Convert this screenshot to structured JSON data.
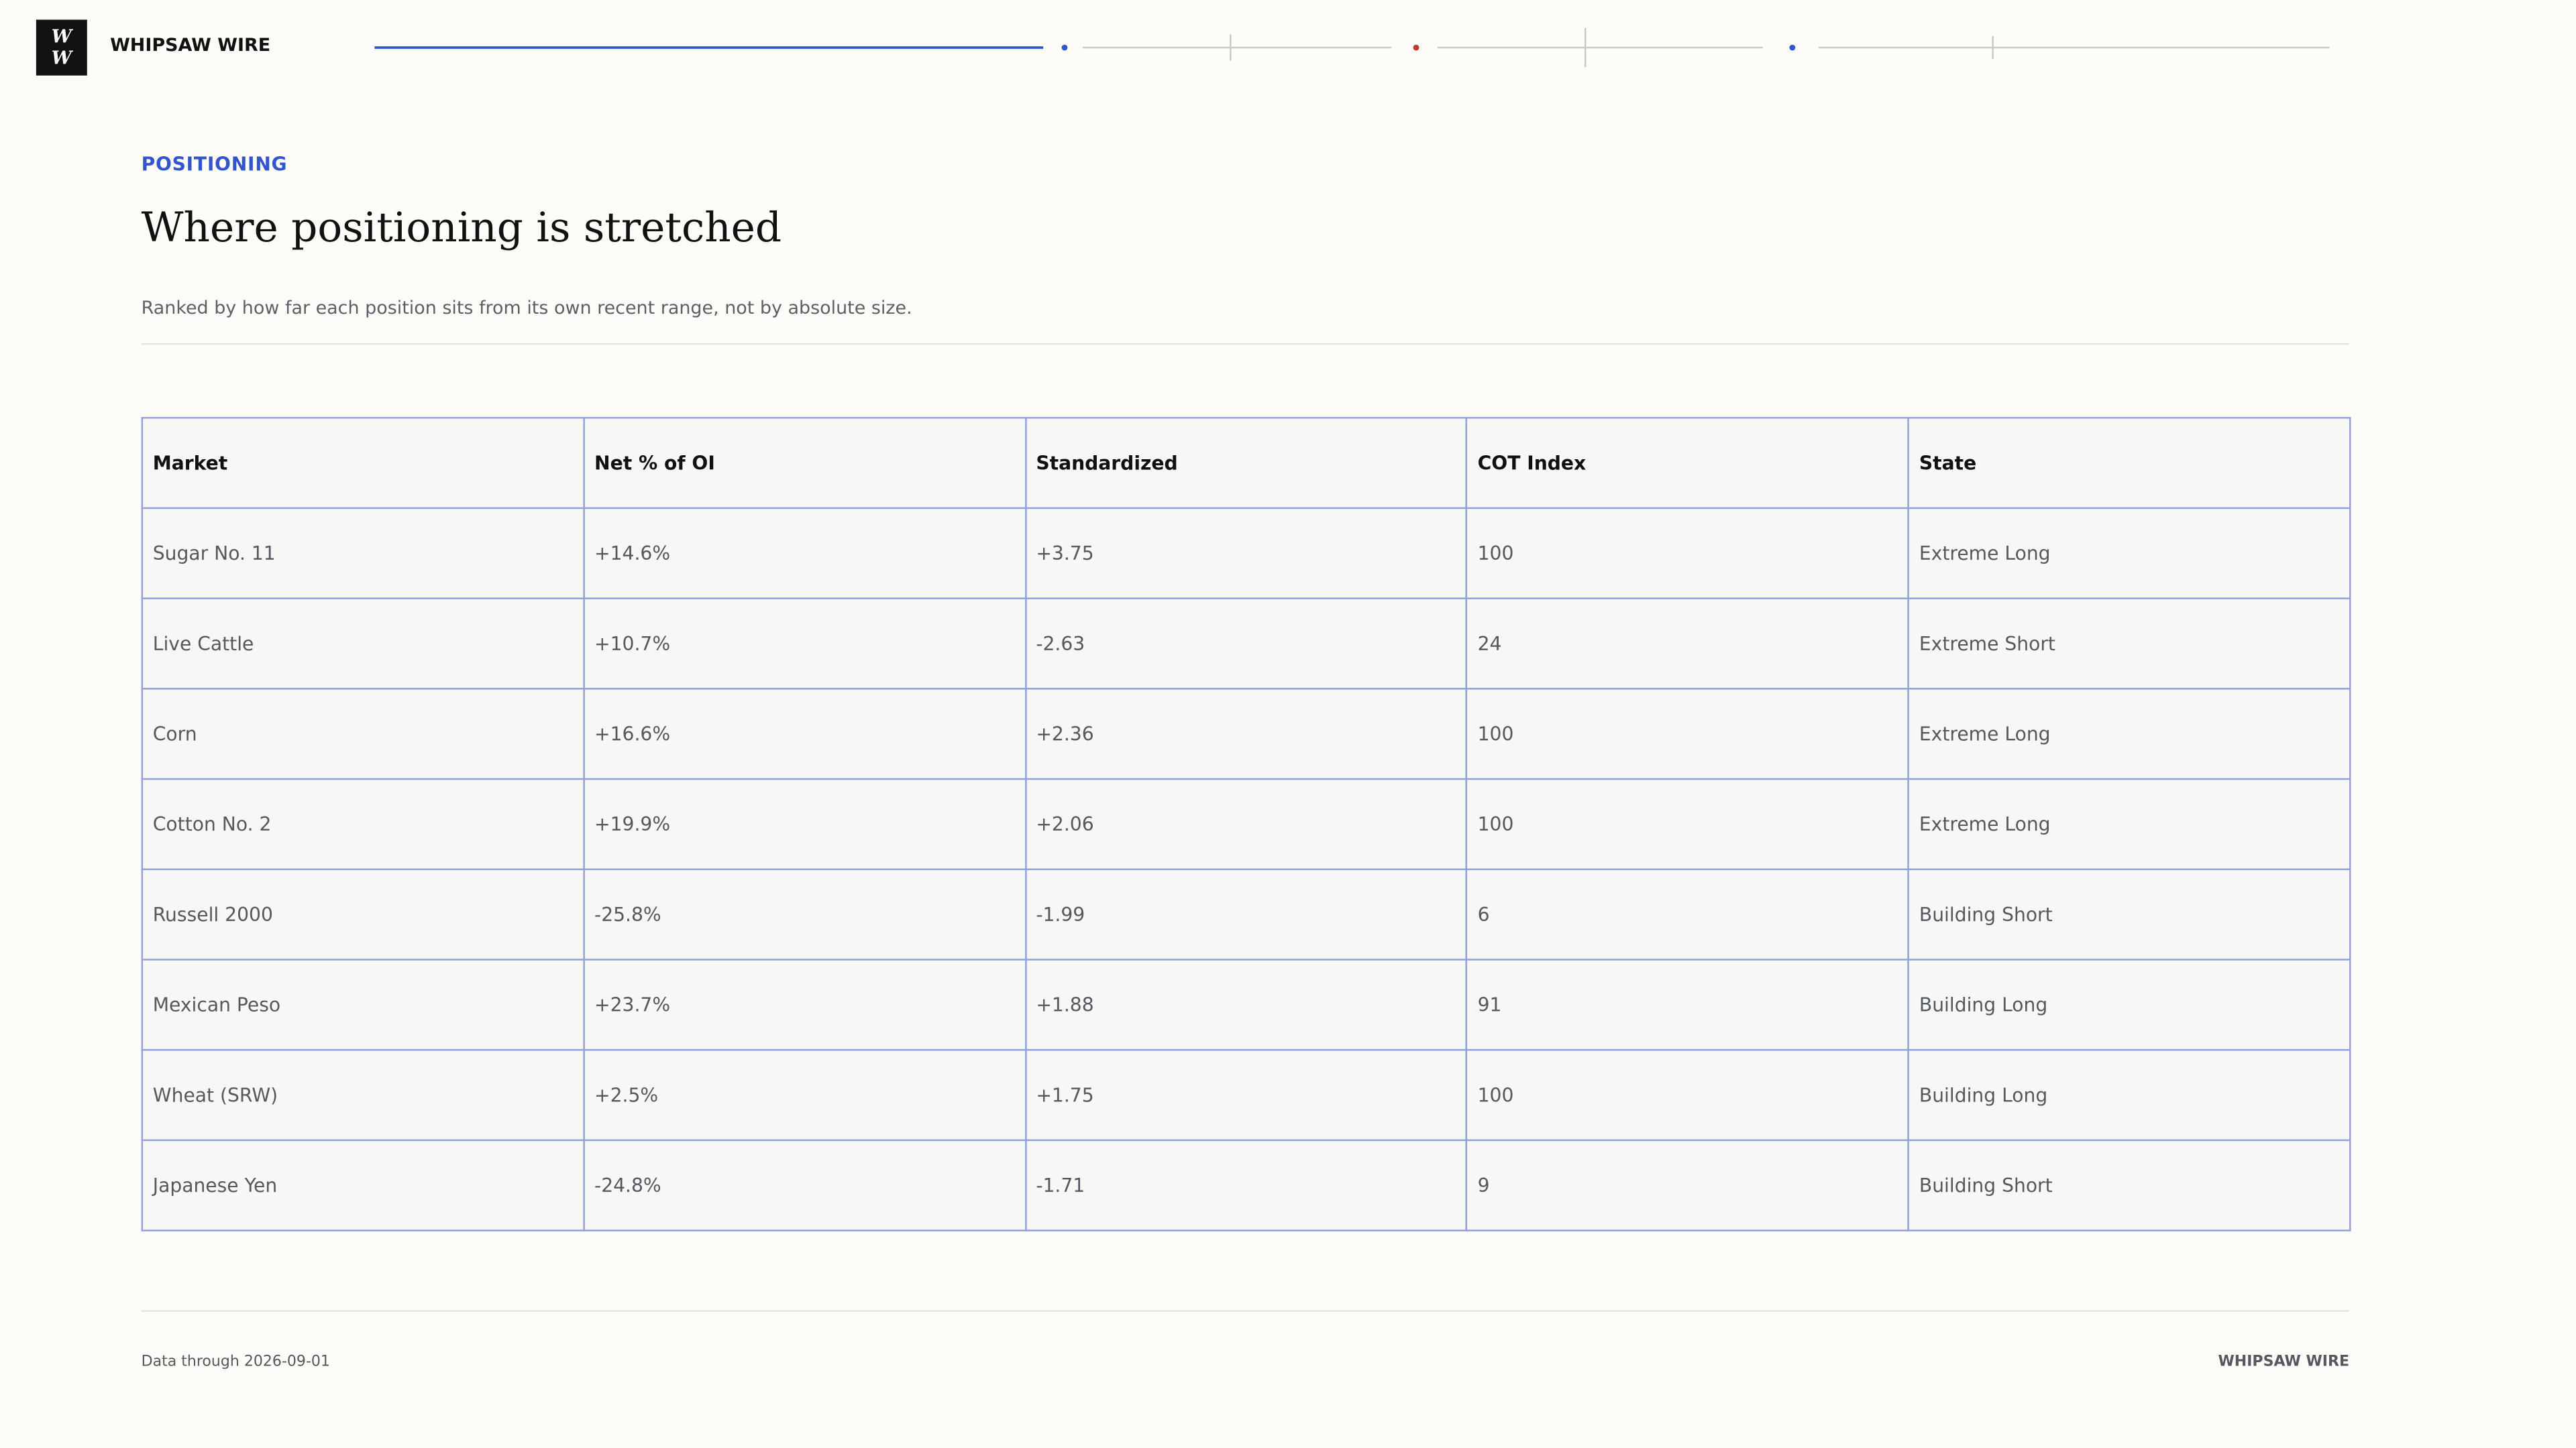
{
  "brand": {
    "logo": "W W",
    "name": "WHIPSAW WIRE"
  },
  "section": {
    "label": "POSITIONING",
    "title": "Where positioning is stretched",
    "subtitle": "Ranked by how far each position sits from its own recent range, not by absolute size."
  },
  "table": {
    "headers": [
      "Market",
      "Net % of OI",
      "Standardized",
      "COT Index",
      "State"
    ],
    "rows": [
      [
        "Sugar No. 11",
        "+14.6%",
        "+3.75",
        "100",
        "Extreme Long"
      ],
      [
        "Live Cattle",
        "+10.7%",
        "-2.63",
        "24",
        "Extreme Short"
      ],
      [
        "Corn",
        "+16.6%",
        "+2.36",
        "100",
        "Extreme Long"
      ],
      [
        "Cotton No. 2",
        "+19.9%",
        "+2.06",
        "100",
        "Extreme Long"
      ],
      [
        "Russell 2000",
        "-25.8%",
        "-1.99",
        "6",
        "Building Short"
      ],
      [
        "Mexican Peso",
        "+23.7%",
        "+1.88",
        "91",
        "Building Long"
      ],
      [
        "Wheat (SRW)",
        "+2.5%",
        "+1.75",
        "100",
        "Building Long"
      ],
      [
        "Japanese Yen",
        "-24.8%",
        "-1.71",
        "9",
        "Building Short"
      ]
    ]
  },
  "footer": {
    "note": "Data through 2026-09-01",
    "brand": "WHIPSAW WIRE"
  }
}
